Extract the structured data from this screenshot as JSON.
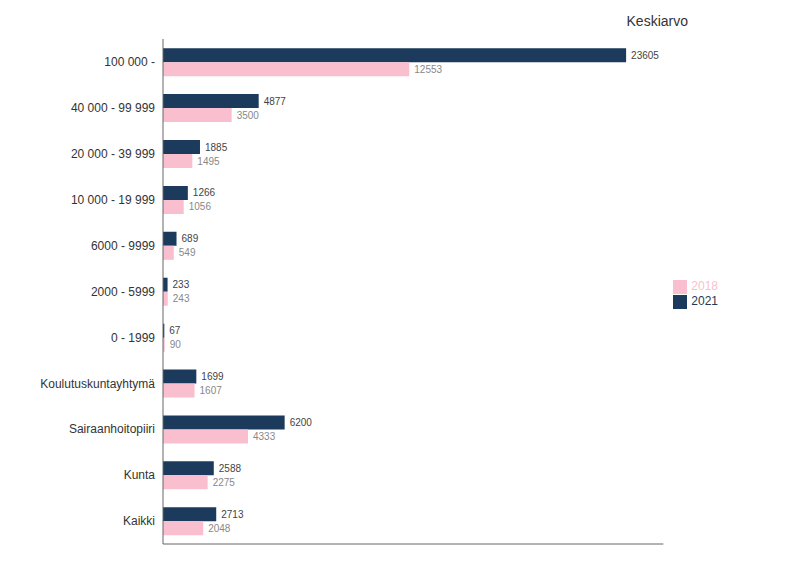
{
  "chart_data": {
    "type": "bar",
    "orientation": "horizontal",
    "title": "Keskiarvo",
    "categories": [
      "100 000 -",
      "40 000 - 99 999",
      "20 000 - 39 999",
      "10 000 - 19 999",
      "6000 - 9999",
      "2000 - 5999",
      "0 - 1999",
      "Koulutuskuntayhtymä",
      "Sairaanhoitopiiri",
      "Kunta",
      "Kaikki"
    ],
    "series": [
      {
        "name": "2021",
        "color": "#1b3a5c",
        "values": [
          23605,
          4877,
          1885,
          1266,
          689,
          233,
          67,
          1699,
          6200,
          2588,
          2713
        ]
      },
      {
        "name": "2018",
        "color": "#f9bfcf",
        "values": [
          12553,
          3500,
          1495,
          1056,
          549,
          243,
          90,
          1607,
          4333,
          2275,
          2048
        ]
      }
    ],
    "xlim": [
      0,
      25500
    ],
    "grid": false,
    "legend": "right",
    "data_labels": true,
    "tick_labels": "y"
  }
}
